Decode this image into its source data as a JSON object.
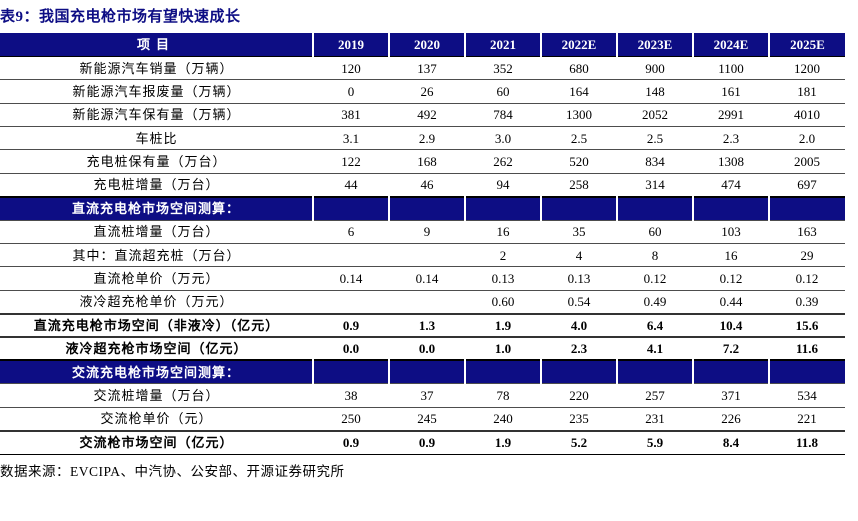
{
  "title": "表9：我国充电枪市场有望快速成长",
  "source_note": "数据来源：EVCIPA、中汽协、公安部、开源证券研究所",
  "colors": {
    "header_bg": "#0D0D84",
    "title_text": "#0D0D84",
    "row_line": "#4d4d4d",
    "strong_line": "#000000"
  },
  "table": {
    "columns": [
      "项目",
      "2019",
      "2020",
      "2021",
      "2022E",
      "2023E",
      "2024E",
      "2025E"
    ],
    "rows": [
      {
        "type": "data",
        "label": "新能源汽车销量（万辆）",
        "values": [
          "120",
          "137",
          "352",
          "680",
          "900",
          "1100",
          "1200"
        ]
      },
      {
        "type": "data",
        "label": "新能源汽车报废量（万辆）",
        "values": [
          "0",
          "26",
          "60",
          "164",
          "148",
          "161",
          "181"
        ]
      },
      {
        "type": "data",
        "label": "新能源汽车保有量（万辆）",
        "values": [
          "381",
          "492",
          "784",
          "1300",
          "2052",
          "2991",
          "4010"
        ]
      },
      {
        "type": "data",
        "label": "车桩比",
        "values": [
          "3.1",
          "2.9",
          "3.0",
          "2.5",
          "2.5",
          "2.3",
          "2.0"
        ]
      },
      {
        "type": "data",
        "label": "充电桩保有量（万台）",
        "values": [
          "122",
          "168",
          "262",
          "520",
          "834",
          "1308",
          "2005"
        ]
      },
      {
        "type": "data",
        "label": "充电桩增量（万台）",
        "values": [
          "44",
          "46",
          "94",
          "258",
          "314",
          "474",
          "697"
        ]
      },
      {
        "type": "section",
        "label": "直流充电枪市场空间测算：",
        "values": [
          "",
          "",
          "",
          "",
          "",
          "",
          ""
        ]
      },
      {
        "type": "data",
        "label": "直流桩增量（万台）",
        "values": [
          "6",
          "9",
          "16",
          "35",
          "60",
          "103",
          "163"
        ]
      },
      {
        "type": "data",
        "label": "其中：直流超充桩（万台）",
        "values": [
          "",
          "",
          "2",
          "4",
          "8",
          "16",
          "29"
        ]
      },
      {
        "type": "data",
        "label": "直流枪单价（万元）",
        "values": [
          "0.14",
          "0.14",
          "0.13",
          "0.13",
          "0.12",
          "0.12",
          "0.12"
        ]
      },
      {
        "type": "data",
        "label": "液冷超充枪单价（万元）",
        "values": [
          "",
          "",
          "0.60",
          "0.54",
          "0.49",
          "0.44",
          "0.39"
        ]
      },
      {
        "type": "total",
        "label": "直流充电枪市场空间（非液冷）（亿元）",
        "values": [
          "0.9",
          "1.3",
          "1.9",
          "4.0",
          "6.4",
          "10.4",
          "15.6"
        ]
      },
      {
        "type": "total",
        "label": "液冷超充枪市场空间（亿元）",
        "values": [
          "0.0",
          "0.0",
          "1.0",
          "2.3",
          "4.1",
          "7.2",
          "11.6"
        ]
      },
      {
        "type": "section",
        "label": "交流充电枪市场空间测算：",
        "values": [
          "",
          "",
          "",
          "",
          "",
          "",
          ""
        ]
      },
      {
        "type": "data",
        "label": "交流桩增量（万台）",
        "values": [
          "38",
          "37",
          "78",
          "220",
          "257",
          "371",
          "534"
        ]
      },
      {
        "type": "data",
        "label": "交流枪单价（元）",
        "values": [
          "250",
          "245",
          "240",
          "235",
          "231",
          "226",
          "221"
        ]
      },
      {
        "type": "total",
        "label": "交流枪市场空间（亿元）",
        "values": [
          "0.9",
          "0.9",
          "1.9",
          "5.2",
          "5.9",
          "8.4",
          "11.8"
        ]
      }
    ]
  }
}
